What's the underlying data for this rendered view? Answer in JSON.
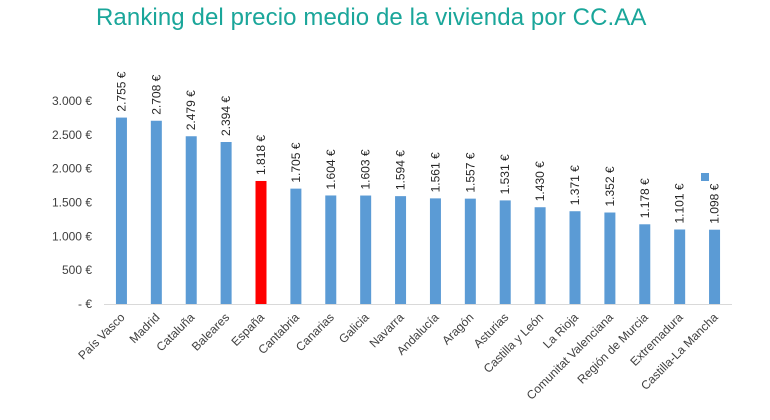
{
  "chart_data": {
    "type": "bar",
    "title": "Ranking del precio medio de la vivienda por CC.AA",
    "xlabel": "",
    "ylabel": "",
    "ylim": [
      0,
      3000
    ],
    "yticks": [
      {
        "value": 0,
        "label": "-  €"
      },
      {
        "value": 500,
        "label": "500 €"
      },
      {
        "value": 1000,
        "label": "1.000 €"
      },
      {
        "value": 1500,
        "label": "1.500 €"
      },
      {
        "value": 2000,
        "label": "2.000 €"
      },
      {
        "value": 2500,
        "label": "2.500 €"
      },
      {
        "value": 3000,
        "label": "3.000 €"
      }
    ],
    "grid": false,
    "legend": "right",
    "bar_color": "#5b9bd5",
    "highlight_color": "#ff0000",
    "categories": [
      "País Vasco",
      "Madrid",
      "Cataluña",
      "Baleares",
      "España",
      "Cantabria",
      "Canarias",
      "Galicia",
      "Navarra",
      "Andalucía",
      "Aragón",
      "Asturias",
      "Castilla y León",
      "La Rioja",
      "Comunitat Valenciana",
      "Región de Murcia",
      "Extremadura",
      "Castilla-La Mancha"
    ],
    "values": [
      2755,
      2708,
      2479,
      2394,
      1818,
      1705,
      1604,
      1603,
      1594,
      1561,
      1557,
      1531,
      1430,
      1371,
      1352,
      1178,
      1101,
      1098
    ],
    "value_labels": [
      "2.755 €",
      "2.708 €",
      "2.479 €",
      "2.394 €",
      "1.818 €",
      "1.705 €",
      "1.604 €",
      "1.603 €",
      "1.594 €",
      "1.561 €",
      "1.557 €",
      "1.531 €",
      "1.430 €",
      "1.371 €",
      "1.352 €",
      "1.178 €",
      "1.101 €",
      "1.098 €"
    ],
    "highlight": [
      "España"
    ]
  }
}
